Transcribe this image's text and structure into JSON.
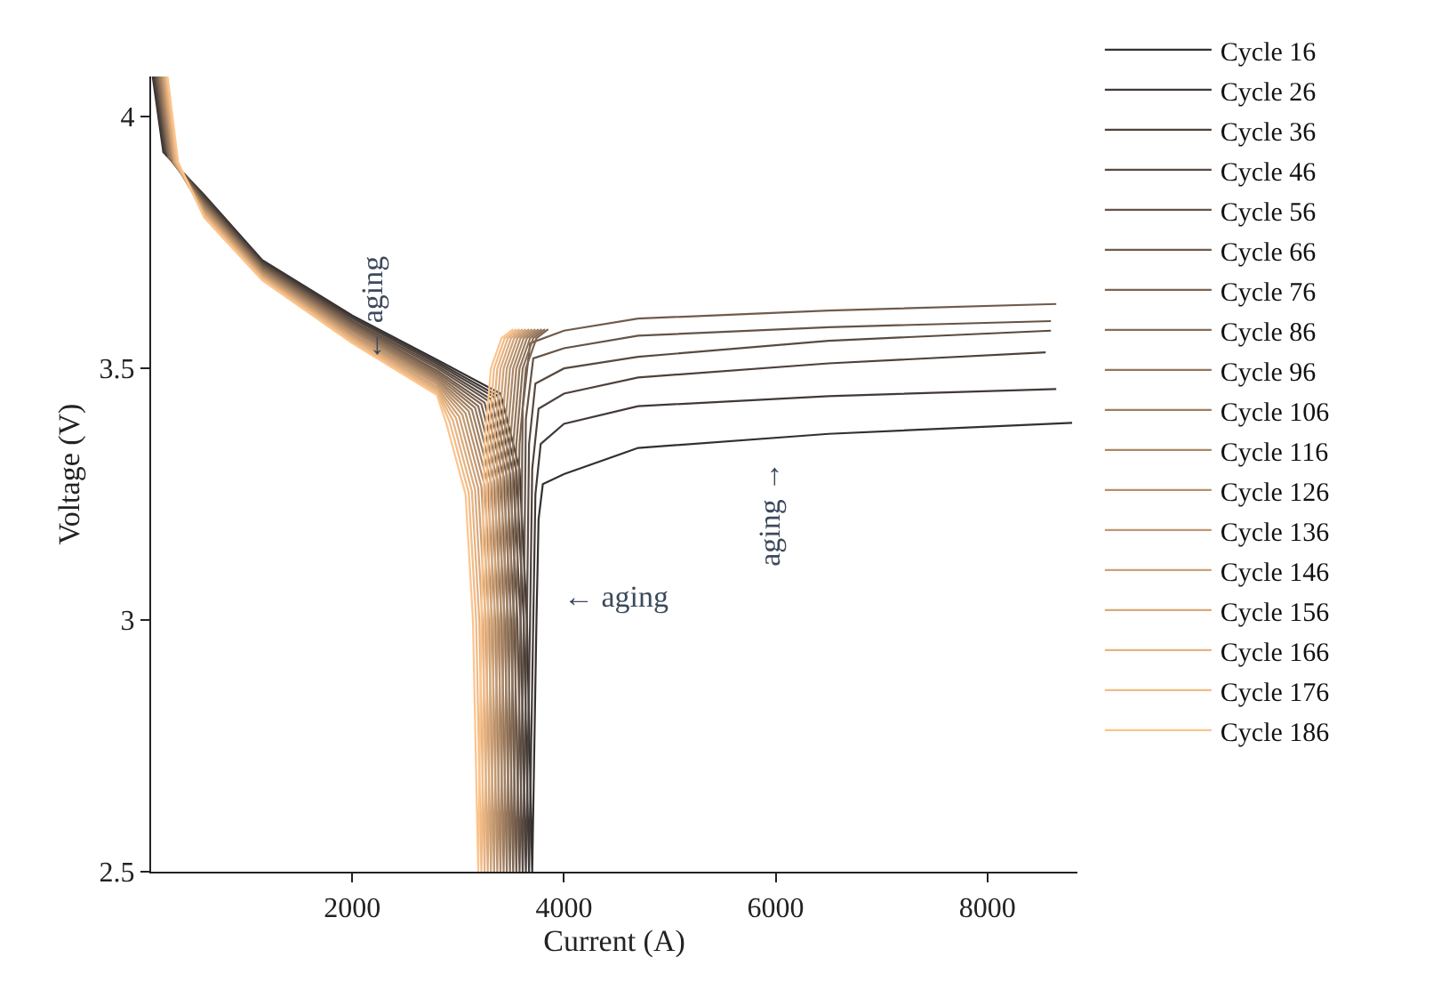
{
  "chart_data": {
    "type": "line",
    "xlabel": "Current (A)",
    "ylabel": "Voltage (V)",
    "xlim": [
      100,
      8850
    ],
    "ylim": [
      2.5,
      4.08
    ],
    "xticks": [
      2000,
      4000,
      6000,
      8000
    ],
    "yticks": [
      2.5,
      3,
      3.5,
      4
    ],
    "grid": false,
    "legend": "right",
    "marker": "none",
    "line_style": "solid",
    "annotations": [
      "← aging",
      "← aging",
      "aging →"
    ],
    "series": [
      {
        "name": "Cycle 16",
        "color": "#353030",
        "x": [
          115,
          215,
          600,
          1150,
          2000,
          2800,
          3400,
          3580,
          3650,
          3700,
          3740,
          3760,
          3800,
          4000,
          4700,
          6500,
          8800
        ],
        "values": [
          4.08,
          3.93,
          3.845,
          3.715,
          3.605,
          3.517,
          3.45,
          3.3,
          3.0,
          2.5,
          3.0,
          3.2,
          3.27,
          3.29,
          3.342,
          3.37,
          3.392
        ]
      },
      {
        "name": "Cycle 26",
        "color": "#413935",
        "x": [
          123,
          223,
          600,
          1150,
          2000,
          2800,
          3370,
          3550,
          3620,
          3670,
          3710,
          3730,
          3780,
          4000,
          4700,
          6500,
          8650
        ],
        "values": [
          4.08,
          3.93,
          3.842,
          3.713,
          3.602,
          3.513,
          3.446,
          3.297,
          3.0,
          2.5,
          3.0,
          3.25,
          3.35,
          3.39,
          3.425,
          3.445,
          3.459
        ]
      },
      {
        "name": "Cycle 36",
        "color": "#4d413b",
        "x": [
          131,
          231,
          600,
          1150,
          2000,
          2800,
          3340,
          3520,
          3590,
          3640,
          3680,
          3700,
          3760,
          4000,
          4700,
          6500,
          8550
        ],
        "values": [
          4.08,
          3.93,
          3.84,
          3.71,
          3.599,
          3.509,
          3.443,
          3.294,
          3.0,
          2.5,
          3.0,
          3.3,
          3.42,
          3.45,
          3.482,
          3.51,
          3.532
        ]
      },
      {
        "name": "Cycle 46",
        "color": "#584a40",
        "x": [
          140,
          240,
          600,
          1150,
          2000,
          2800,
          3310,
          3490,
          3560,
          3610,
          3650,
          3670,
          3730,
          4000,
          4700,
          6500,
          8600
        ],
        "values": [
          4.08,
          3.93,
          3.837,
          3.708,
          3.595,
          3.505,
          3.439,
          3.291,
          3.0,
          2.5,
          3.0,
          3.35,
          3.47,
          3.5,
          3.523,
          3.555,
          3.575
        ]
      },
      {
        "name": "Cycle 56",
        "color": "#645346",
        "x": [
          148,
          248,
          600,
          1150,
          2000,
          2800,
          3280,
          3460,
          3530,
          3580,
          3620,
          3640,
          3710,
          4000,
          4700,
          6500,
          8600
        ],
        "values": [
          4.08,
          3.93,
          3.834,
          3.706,
          3.592,
          3.501,
          3.436,
          3.288,
          3.0,
          2.5,
          3.0,
          3.4,
          3.52,
          3.54,
          3.565,
          3.582,
          3.594
        ]
      },
      {
        "name": "Cycle 66",
        "color": "#705b4b",
        "x": [
          156,
          256,
          600,
          1150,
          2000,
          2800,
          3250,
          3430,
          3500,
          3550,
          3590,
          3610,
          3680,
          4000,
          4700,
          6500,
          8650
        ],
        "values": [
          4.08,
          3.93,
          3.832,
          3.703,
          3.589,
          3.496,
          3.432,
          3.285,
          3.0,
          2.5,
          3.0,
          3.42,
          3.55,
          3.575,
          3.599,
          3.615,
          3.628
        ]
      },
      {
        "name": "Cycle 76",
        "color": "#7c6450",
        "x": [
          164,
          264,
          600,
          1150,
          2000,
          2800,
          3220,
          3400,
          3470,
          3520,
          3550,
          3580,
          3640,
          3740,
          3850
        ],
        "values": [
          4.08,
          3.92,
          3.829,
          3.701,
          3.586,
          3.492,
          3.429,
          3.282,
          3.0,
          2.5,
          3.0,
          3.35,
          3.5,
          3.56,
          3.578
        ]
      },
      {
        "name": "Cycle 86",
        "color": "#886d56",
        "x": [
          173,
          273,
          600,
          1150,
          2000,
          2800,
          3190,
          3370,
          3440,
          3490,
          3520,
          3550,
          3610,
          3710,
          3820
        ],
        "values": [
          4.08,
          3.92,
          3.826,
          3.699,
          3.582,
          3.488,
          3.425,
          3.279,
          3.0,
          2.5,
          3.0,
          3.35,
          3.5,
          3.56,
          3.578
        ]
      },
      {
        "name": "Cycle 96",
        "color": "#93765b",
        "x": [
          181,
          281,
          600,
          1150,
          2000,
          2800,
          3160,
          3340,
          3410,
          3460,
          3490,
          3520,
          3580,
          3680,
          3790
        ],
        "values": [
          4.08,
          3.92,
          3.824,
          3.696,
          3.579,
          3.484,
          3.422,
          3.276,
          3.0,
          2.5,
          3.0,
          3.35,
          3.5,
          3.56,
          3.578
        ]
      },
      {
        "name": "Cycle 106",
        "color": "#9f7e60",
        "x": [
          189,
          289,
          600,
          1150,
          2000,
          2800,
          3130,
          3310,
          3380,
          3430,
          3460,
          3490,
          3550,
          3650,
          3760
        ],
        "values": [
          4.08,
          3.92,
          3.821,
          3.694,
          3.576,
          3.48,
          3.418,
          3.274,
          3.0,
          2.5,
          3.0,
          3.35,
          3.5,
          3.56,
          3.578
        ]
      },
      {
        "name": "Cycle 116",
        "color": "#ab8766",
        "x": [
          197,
          297,
          600,
          1150,
          2000,
          2800,
          3100,
          3280,
          3350,
          3400,
          3430,
          3460,
          3520,
          3620,
          3730
        ],
        "values": [
          4.08,
          3.92,
          3.819,
          3.691,
          3.573,
          3.476,
          3.415,
          3.271,
          3.0,
          2.5,
          3.0,
          3.35,
          3.5,
          3.56,
          3.578
        ]
      },
      {
        "name": "Cycle 126",
        "color": "#b7906b",
        "x": [
          206,
          306,
          600,
          1150,
          2000,
          2800,
          3070,
          3250,
          3320,
          3370,
          3400,
          3430,
          3490,
          3590,
          3700
        ],
        "values": [
          4.08,
          3.92,
          3.816,
          3.689,
          3.569,
          3.472,
          3.411,
          3.268,
          3.0,
          2.5,
          3.0,
          3.35,
          3.5,
          3.56,
          3.578
        ]
      },
      {
        "name": "Cycle 136",
        "color": "#c29871",
        "x": [
          214,
          314,
          600,
          1150,
          2000,
          2800,
          3040,
          3220,
          3290,
          3340,
          3370,
          3400,
          3460,
          3560,
          3670
        ],
        "values": [
          4.08,
          3.91,
          3.813,
          3.687,
          3.566,
          3.468,
          3.408,
          3.265,
          3.0,
          2.5,
          3.0,
          3.35,
          3.5,
          3.56,
          3.578
        ]
      },
      {
        "name": "Cycle 146",
        "color": "#cea176",
        "x": [
          222,
          322,
          600,
          1150,
          2000,
          2800,
          3010,
          3190,
          3260,
          3310,
          3340,
          3370,
          3430,
          3530,
          3640
        ],
        "values": [
          4.08,
          3.91,
          3.811,
          3.684,
          3.563,
          3.463,
          3.404,
          3.262,
          3.0,
          2.5,
          3.0,
          3.35,
          3.5,
          3.56,
          3.578
        ]
      },
      {
        "name": "Cycle 156",
        "color": "#daaa7b",
        "x": [
          230,
          330,
          600,
          1150,
          2000,
          2800,
          2980,
          3160,
          3230,
          3280,
          3310,
          3340,
          3400,
          3500,
          3610
        ],
        "values": [
          4.08,
          3.91,
          3.808,
          3.682,
          3.56,
          3.459,
          3.401,
          3.259,
          3.0,
          2.5,
          3.0,
          3.35,
          3.5,
          3.56,
          3.578
        ]
      },
      {
        "name": "Cycle 166",
        "color": "#e6b281",
        "x": [
          239,
          339,
          600,
          1150,
          2000,
          2800,
          2950,
          3130,
          3200,
          3250,
          3280,
          3310,
          3370,
          3470,
          3580
        ],
        "values": [
          4.08,
          3.91,
          3.805,
          3.68,
          3.556,
          3.455,
          3.397,
          3.256,
          3.0,
          2.5,
          3.0,
          3.35,
          3.5,
          3.56,
          3.578
        ]
      },
      {
        "name": "Cycle 176",
        "color": "#f1bb86",
        "x": [
          247,
          347,
          600,
          1150,
          2000,
          2800,
          2920,
          3100,
          3170,
          3220,
          3250,
          3280,
          3340,
          3440,
          3550
        ],
        "values": [
          4.08,
          3.91,
          3.803,
          3.677,
          3.553,
          3.451,
          3.394,
          3.253,
          3.0,
          2.5,
          3.0,
          3.35,
          3.5,
          3.56,
          3.578
        ]
      },
      {
        "name": "Cycle 186",
        "color": "#fdc48c",
        "x": [
          255,
          355,
          600,
          1150,
          2000,
          2800,
          2890,
          3070,
          3140,
          3190,
          3220,
          3250,
          3310,
          3410,
          3520
        ],
        "values": [
          4.08,
          3.91,
          3.8,
          3.675,
          3.55,
          3.447,
          3.39,
          3.25,
          3.0,
          2.5,
          3.0,
          3.35,
          3.5,
          3.56,
          3.578
        ]
      }
    ]
  }
}
